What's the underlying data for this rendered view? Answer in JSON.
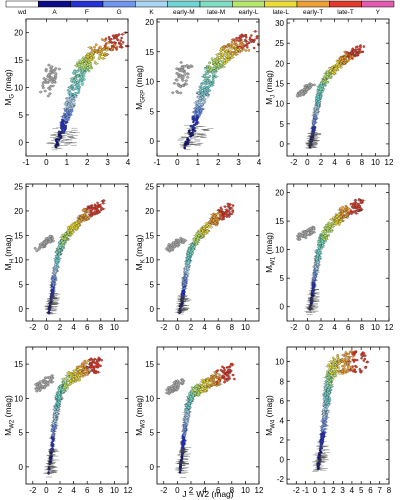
{
  "chart_data": {
    "type": "scatter",
    "legend": {
      "placement": "top",
      "classes": [
        {
          "label": "wd",
          "color": "#ffffff"
        },
        {
          "label": "A",
          "color": "#0c0c8a"
        },
        {
          "label": "F",
          "color": "#2432d6"
        },
        {
          "label": "G",
          "color": "#6f96f0"
        },
        {
          "label": "K",
          "color": "#a9d6f4"
        },
        {
          "label": "early-M",
          "color": "#6fd6d6"
        },
        {
          "label": "late-M",
          "color": "#7de0c4"
        },
        {
          "label": "early-L",
          "color": "#b8e86a"
        },
        {
          "label": "late-L",
          "color": "#eddc36"
        },
        {
          "label": "early-T",
          "color": "#f0a030"
        },
        {
          "label": "late-T",
          "color": "#e23a2a"
        },
        {
          "label": "Y",
          "color": "#e45ab0"
        }
      ]
    },
    "shared_xlabel": "J − W2 (mag)",
    "panels": [
      {
        "ylabel": "M_G (mag)",
        "sub": "G",
        "xlim": [
          -1,
          4
        ],
        "ylim": [
          22.5,
          -2.5
        ],
        "xticks": [
          -1,
          0,
          1,
          2,
          3,
          4
        ],
        "xticklabels": [
          "-1",
          "0",
          "1",
          "2",
          "3",
          "4"
        ],
        "yticks": [
          0,
          5,
          10,
          15,
          20
        ],
        "yticklabels": [
          "0",
          "5",
          "10",
          "15",
          "20"
        ],
        "wd_ms": [
          [
            0.0,
            9.0
          ],
          [
            0.15,
            11.0
          ],
          [
            0.2,
            12.5
          ],
          [
            0.4,
            14.0
          ]
        ],
        "ms": [
          [
            0.4,
            -1.0
          ],
          [
            0.8,
            2.5
          ],
          [
            1.0,
            5.0
          ],
          [
            1.2,
            8.0
          ],
          [
            1.5,
            11.0
          ],
          [
            1.8,
            14.0
          ],
          [
            2.3,
            16.0
          ],
          [
            3.0,
            17.5
          ],
          [
            3.8,
            19.0
          ]
        ]
      },
      {
        "ylabel": "M_GRP (mag)",
        "sub": "GRP",
        "xlim": [
          -1,
          4
        ],
        "ylim": [
          20.5,
          -2.5
        ],
        "xticks": [
          -1,
          0,
          1,
          2,
          3,
          4
        ],
        "xticklabels": [
          "-1",
          "0",
          "1",
          "2",
          "3",
          "4"
        ],
        "yticks": [
          0,
          5,
          10,
          15,
          20
        ],
        "yticklabels": [
          "0",
          "5",
          "10",
          "15",
          "20"
        ],
        "wd_ms": [
          [
            0.0,
            8.0
          ],
          [
            0.15,
            10.0
          ],
          [
            0.25,
            11.5
          ],
          [
            0.5,
            13.0
          ]
        ],
        "ms": [
          [
            0.4,
            -1.0
          ],
          [
            0.8,
            2.5
          ],
          [
            1.0,
            5.0
          ],
          [
            1.2,
            7.5
          ],
          [
            1.5,
            10.0
          ],
          [
            1.8,
            12.5
          ],
          [
            2.3,
            14.5
          ],
          [
            3.0,
            16.0
          ],
          [
            3.8,
            17.5
          ]
        ]
      },
      {
        "ylabel": "M_J (mag)",
        "sub": "J",
        "xlim": [
          -3,
          12
        ],
        "ylim": [
          31,
          -3
        ],
        "xticks": [
          -2,
          0,
          2,
          4,
          6,
          8,
          10,
          12
        ],
        "xticklabels": [
          "-2",
          "0",
          "2",
          "4",
          "6",
          "8",
          "10",
          "12"
        ],
        "yticks": [
          0,
          5,
          10,
          15,
          20,
          25,
          30
        ],
        "yticklabels": [
          "0",
          "5",
          "10",
          "15",
          "20",
          "25",
          "30"
        ],
        "wd_ms": [
          [
            -1.5,
            12.0
          ],
          [
            -0.5,
            13.0
          ],
          [
            0.0,
            14.0
          ],
          [
            1.0,
            15.0
          ]
        ],
        "ms": [
          [
            0.3,
            -1.0
          ],
          [
            0.8,
            2.5
          ],
          [
            1.0,
            5.0
          ],
          [
            1.3,
            8.0
          ],
          [
            1.6,
            11.0
          ],
          [
            2.0,
            14.0
          ],
          [
            3.0,
            17.0
          ],
          [
            4.5,
            19.5
          ],
          [
            6.0,
            22.0
          ],
          [
            8.0,
            23.5
          ]
        ]
      },
      {
        "ylabel": "M_H (mag)",
        "sub": "H",
        "xlim": [
          -3,
          12
        ],
        "ylim": [
          25.5,
          -2.5
        ],
        "xticks": [
          -2,
          0,
          2,
          4,
          6,
          8,
          10
        ],
        "xticklabels": [
          "-2",
          "0",
          "2",
          "4",
          "6",
          "8",
          "10"
        ],
        "yticks": [
          0,
          5,
          10,
          15,
          20,
          25
        ],
        "yticklabels": [
          "0",
          "5",
          "10",
          "15",
          "20",
          "25"
        ],
        "wd_ms": [
          [
            -1.5,
            12.0
          ],
          [
            -0.5,
            13.0
          ],
          [
            0.0,
            14.0
          ],
          [
            1.0,
            14.5
          ]
        ],
        "ms": [
          [
            0.3,
            -1.0
          ],
          [
            0.8,
            2.5
          ],
          [
            1.0,
            5.0
          ],
          [
            1.3,
            7.5
          ],
          [
            1.6,
            10.0
          ],
          [
            2.0,
            12.5
          ],
          [
            3.0,
            15.0
          ],
          [
            4.5,
            17.5
          ],
          [
            6.0,
            19.5
          ],
          [
            8.0,
            21.0
          ]
        ]
      },
      {
        "ylabel": "M_K (mag)",
        "sub": "K",
        "xlim": [
          -3,
          12
        ],
        "ylim": [
          25.5,
          -2.5
        ],
        "xticks": [
          -2,
          0,
          2,
          4,
          6,
          8,
          10
        ],
        "xticklabels": [
          "-2",
          "0",
          "2",
          "4",
          "6",
          "8",
          "10"
        ],
        "yticks": [
          0,
          5,
          10,
          15,
          20,
          25
        ],
        "yticklabels": [
          "0",
          "5",
          "10",
          "15",
          "20",
          "25"
        ],
        "wd_ms": [
          [
            -1.5,
            12.0
          ],
          [
            -0.5,
            13.0
          ],
          [
            0.0,
            13.5
          ],
          [
            1.0,
            14.0
          ]
        ],
        "ms": [
          [
            0.3,
            -1.0
          ],
          [
            0.8,
            2.5
          ],
          [
            1.0,
            5.0
          ],
          [
            1.3,
            7.5
          ],
          [
            1.6,
            10.0
          ],
          [
            2.0,
            12.0
          ],
          [
            3.0,
            14.5
          ],
          [
            4.5,
            17.0
          ],
          [
            6.0,
            19.0
          ],
          [
            8.0,
            20.5
          ]
        ]
      },
      {
        "ylabel": "M_W1 (mag)",
        "sub": "W1",
        "xlim": [
          -3,
          12
        ],
        "ylim": [
          21.5,
          -2.5
        ],
        "xticks": [
          -2,
          0,
          2,
          4,
          6,
          8,
          10,
          12
        ],
        "xticklabels": [
          "-2",
          "0",
          "2",
          "4",
          "6",
          "8",
          "10",
          "12"
        ],
        "yticks": [
          0,
          5,
          10,
          15,
          20
        ],
        "yticklabels": [
          "0",
          "5",
          "10",
          "15",
          "20"
        ],
        "wd_ms": [
          [
            -1.5,
            12.0
          ],
          [
            -0.5,
            12.5
          ],
          [
            0.0,
            13.0
          ],
          [
            1.0,
            13.5
          ]
        ],
        "ms": [
          [
            0.3,
            -1.0
          ],
          [
            0.8,
            2.5
          ],
          [
            1.0,
            5.0
          ],
          [
            1.3,
            7.0
          ],
          [
            1.6,
            9.0
          ],
          [
            2.0,
            11.5
          ],
          [
            3.0,
            13.5
          ],
          [
            4.5,
            15.5
          ],
          [
            6.0,
            17.0
          ],
          [
            8.0,
            18.0
          ]
        ]
      },
      {
        "ylabel": "M_W2 (mag)",
        "sub": "W2",
        "xlim": [
          -3,
          12
        ],
        "ylim": [
          17.5,
          -2.5
        ],
        "xticks": [
          -2,
          0,
          2,
          4,
          6,
          8,
          10,
          12
        ],
        "xticklabels": [
          "-2",
          "0",
          "2",
          "4",
          "6",
          "8",
          "10",
          "12"
        ],
        "yticks": [
          0,
          5,
          10,
          15
        ],
        "yticklabels": [
          "0",
          "5",
          "10",
          "15"
        ],
        "wd_ms": [
          [
            -1.5,
            11.5
          ],
          [
            -0.5,
            12.0
          ],
          [
            0.0,
            12.5
          ],
          [
            1.0,
            13.0
          ]
        ],
        "ms": [
          [
            0.3,
            -1.0
          ],
          [
            0.8,
            2.5
          ],
          [
            1.0,
            5.0
          ],
          [
            1.3,
            7.0
          ],
          [
            1.6,
            9.0
          ],
          [
            2.0,
            11.0
          ],
          [
            3.0,
            12.5
          ],
          [
            4.5,
            13.5
          ],
          [
            6.0,
            14.5
          ],
          [
            8.0,
            15.0
          ]
        ]
      },
      {
        "ylabel": "M_W3 (mag)",
        "sub": "W3",
        "xlim": [
          -3,
          12
        ],
        "ylim": [
          17.5,
          -2.5
        ],
        "xticks": [
          -2,
          0,
          2,
          4,
          6,
          8,
          10,
          12
        ],
        "xticklabels": [
          "-2",
          "0",
          "2",
          "4",
          "6",
          "8",
          "10",
          "12"
        ],
        "yticks": [
          0,
          5,
          10,
          15
        ],
        "yticklabels": [
          "0",
          "5",
          "10",
          "15"
        ],
        "wd_ms": [
          [
            -1.5,
            11.0
          ],
          [
            -0.5,
            11.5
          ],
          [
            0.0,
            12.0
          ],
          [
            1.0,
            12.5
          ]
        ],
        "ms": [
          [
            0.3,
            -1.0
          ],
          [
            0.8,
            2.5
          ],
          [
            1.0,
            5.0
          ],
          [
            1.3,
            7.0
          ],
          [
            1.6,
            9.0
          ],
          [
            2.0,
            10.5
          ],
          [
            3.0,
            11.5
          ],
          [
            4.5,
            12.0
          ],
          [
            6.0,
            13.0
          ],
          [
            8.0,
            14.0
          ]
        ]
      },
      {
        "ylabel": "M_W4 (mag)",
        "sub": "W4",
        "xlim": [
          -3,
          8
        ],
        "ylim": [
          11.5,
          -2.5
        ],
        "xticks": [
          -2,
          -1,
          0,
          1,
          2,
          3,
          4,
          5,
          6,
          7,
          8
        ],
        "xticklabels": [
          "-2",
          "-1",
          "0",
          "1",
          "2",
          "3",
          "4",
          "5",
          "6",
          "7",
          "8"
        ],
        "yticks": [
          -2,
          0,
          2,
          4,
          6,
          8,
          10
        ],
        "yticklabels": [
          "-2",
          "0",
          "2",
          "4",
          "6",
          "8",
          "10"
        ],
        "wd_ms": [],
        "ms": [
          [
            0.3,
            -1.0
          ],
          [
            0.7,
            1.5
          ],
          [
            1.0,
            3.5
          ],
          [
            1.2,
            5.5
          ],
          [
            1.4,
            7.0
          ],
          [
            1.6,
            8.5
          ],
          [
            2.0,
            9.5
          ],
          [
            3.5,
            10.0
          ],
          [
            5.5,
            10.0
          ]
        ]
      }
    ]
  }
}
